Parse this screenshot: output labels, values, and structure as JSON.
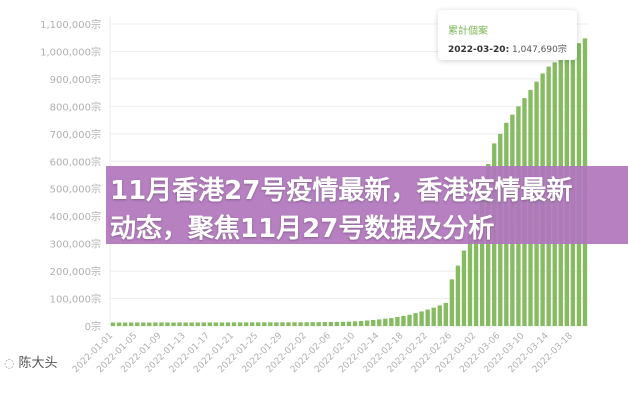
{
  "chart_data": {
    "type": "bar",
    "series_name": "累計個案",
    "y_unit": "宗",
    "ylim": [
      0,
      1100000
    ],
    "yticks": [
      0,
      100000,
      200000,
      300000,
      400000,
      500000,
      600000,
      700000,
      800000,
      900000,
      1000000,
      1100000
    ],
    "ytick_labels": [
      "0宗",
      "100,000宗",
      "200,000宗",
      "300,000宗",
      "400,000宗",
      "500,000宗",
      "600,000宗",
      "700,000宗",
      "800,000宗",
      "900,000宗",
      "1,000,000宗",
      "1,100,000宗"
    ],
    "grid": true,
    "bar_color": "#86bb62",
    "xtick_labels": [
      "2022-01-01",
      "2022-01-05",
      "2022-01-09",
      "2022-01-13",
      "2022-01-17",
      "2022-01-21",
      "2022-01-25",
      "2022-01-29",
      "2022-02-02",
      "2022-02-06",
      "2022-02-10",
      "2022-02-14",
      "2022-02-18",
      "2022-02-22",
      "2022-02-26",
      "2022-03-02",
      "2022-03-06",
      "2022-03-10",
      "2022-03-14",
      "2022-03-18"
    ],
    "values": [
      12600,
      12620,
      12650,
      12670,
      12700,
      12720,
      12750,
      12780,
      12800,
      12830,
      12860,
      12880,
      12900,
      12930,
      12960,
      12990,
      13020,
      13050,
      13080,
      13110,
      13140,
      13170,
      13200,
      13230,
      13260,
      13290,
      13320,
      13350,
      13380,
      13410,
      13440,
      13500,
      13600,
      13800,
      14000,
      14300,
      14600,
      15000,
      15400,
      16000,
      17000,
      18500,
      20000,
      22000,
      24000,
      26500,
      29000,
      33000,
      37000,
      41000,
      47000,
      53000,
      60000,
      67000,
      75000,
      84000,
      170000,
      220000,
      275000,
      330000,
      420000,
      500000,
      590000,
      665000,
      700000,
      740000,
      770000,
      800000,
      830000,
      860000,
      890000,
      920000,
      945000,
      960000,
      970000,
      980000,
      1010000,
      1030000,
      1047690
    ]
  },
  "tooltip": {
    "title": "累計個案",
    "date": "2022-03-20:",
    "value": "1,047,690宗"
  },
  "banner": {
    "line1": "11月香港27号疫情最新，香港疫情最新",
    "line2": "动态，聚焦11月27号数据及分析"
  },
  "watermark": "陈大头"
}
